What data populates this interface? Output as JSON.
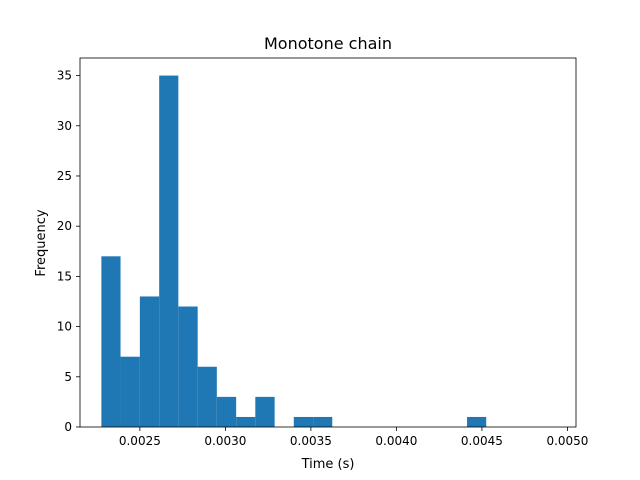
{
  "chart_data": {
    "type": "bar",
    "subtype": "histogram",
    "title": "Monotone chain",
    "xlabel": "Time (s)",
    "ylabel": "Frequency",
    "xlim": [
      0.00215,
      0.00505
    ],
    "ylim": [
      0,
      36.75
    ],
    "grid": false,
    "color": "#1f77b4",
    "bins": [
      {
        "x0": 0.002275,
        "x1": 0.002387,
        "count": 17
      },
      {
        "x0": 0.002387,
        "x1": 0.0025,
        "count": 7
      },
      {
        "x0": 0.0025,
        "x1": 0.002613,
        "count": 13
      },
      {
        "x0": 0.002613,
        "x1": 0.002725,
        "count": 35
      },
      {
        "x0": 0.002725,
        "x1": 0.002838,
        "count": 12
      },
      {
        "x0": 0.002838,
        "x1": 0.00295,
        "count": 6
      },
      {
        "x0": 0.00295,
        "x1": 0.003063,
        "count": 3
      },
      {
        "x0": 0.003063,
        "x1": 0.003175,
        "count": 1
      },
      {
        "x0": 0.003175,
        "x1": 0.003288,
        "count": 3
      },
      {
        "x0": 0.003288,
        "x1": 0.0034,
        "count": 0
      },
      {
        "x0": 0.0034,
        "x1": 0.003513,
        "count": 1
      },
      {
        "x0": 0.003513,
        "x1": 0.003625,
        "count": 1
      },
      {
        "x0": 0.003625,
        "x1": 0.003738,
        "count": 0
      },
      {
        "x0": 0.003738,
        "x1": 0.00385,
        "count": 0
      },
      {
        "x0": 0.00385,
        "x1": 0.003963,
        "count": 0
      },
      {
        "x0": 0.003963,
        "x1": 0.004075,
        "count": 0
      },
      {
        "x0": 0.004075,
        "x1": 0.004188,
        "count": 0
      },
      {
        "x0": 0.004188,
        "x1": 0.0043,
        "count": 0
      },
      {
        "x0": 0.0043,
        "x1": 0.004413,
        "count": 0
      },
      {
        "x0": 0.004413,
        "x1": 0.004525,
        "count": 1
      }
    ],
    "xticks": [
      {
        "value": 0.0025,
        "label": "0.0025"
      },
      {
        "value": 0.003,
        "label": "0.0030"
      },
      {
        "value": 0.0035,
        "label": "0.0035"
      },
      {
        "value": 0.004,
        "label": "0.0040"
      },
      {
        "value": 0.0045,
        "label": "0.0045"
      },
      {
        "value": 0.005,
        "label": "0.0050"
      }
    ],
    "yticks": [
      {
        "value": 0,
        "label": "0"
      },
      {
        "value": 5,
        "label": "5"
      },
      {
        "value": 10,
        "label": "10"
      },
      {
        "value": 15,
        "label": "15"
      },
      {
        "value": 20,
        "label": "20"
      },
      {
        "value": 25,
        "label": "25"
      },
      {
        "value": 30,
        "label": "30"
      },
      {
        "value": 35,
        "label": "35"
      }
    ]
  }
}
